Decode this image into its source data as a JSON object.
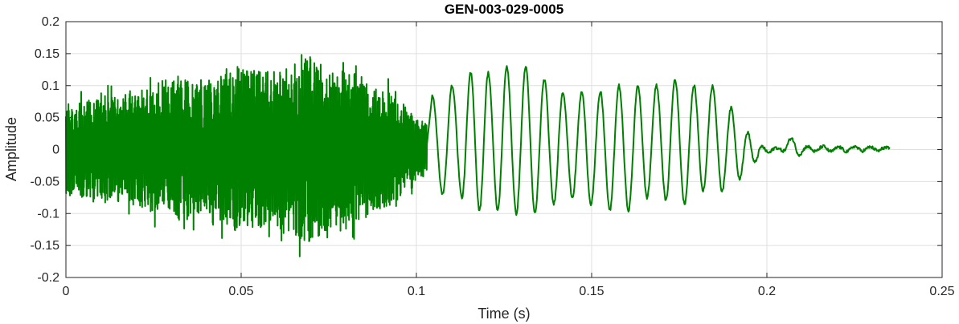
{
  "chart_data": {
    "type": "line",
    "title": "GEN-003-029-0005",
    "xlabel": "Time (s)",
    "ylabel": "Amplitude",
    "xlim": [
      0,
      0.25
    ],
    "ylim": [
      -0.2,
      0.2
    ],
    "xticks": [
      0,
      0.05,
      0.1,
      0.15,
      0.2,
      0.25
    ],
    "xtick_labels": [
      "0",
      "0.05",
      "0.1",
      "0.15",
      "0.2",
      "0.25"
    ],
    "yticks": [
      -0.2,
      -0.15,
      -0.1,
      -0.05,
      0,
      0.05,
      0.1,
      0.15,
      0.2
    ],
    "ytick_labels": [
      "-0.2",
      "-0.15",
      "-0.1",
      "-0.05",
      "0",
      "0.05",
      "0.1",
      "0.15",
      "0.2"
    ],
    "grid": true,
    "color": "#008000",
    "series": [
      {
        "segments": [
          {
            "kind": "noise",
            "t_start": 0.0,
            "t_end": 0.103,
            "env": [
              [
                0.0,
                0.07
              ],
              [
                0.01,
                0.08
              ],
              [
                0.02,
                0.09
              ],
              [
                0.03,
                0.11
              ],
              [
                0.04,
                0.11
              ],
              [
                0.05,
                0.13
              ],
              [
                0.06,
                0.12
              ],
              [
                0.067,
                0.15
              ],
              [
                0.075,
                0.13
              ],
              [
                0.085,
                0.11
              ],
              [
                0.092,
                0.09
              ],
              [
                0.1,
                0.05
              ],
              [
                0.103,
                0.04
              ]
            ]
          },
          {
            "kind": "peaks",
            "t": [
              0.1045,
              0.1075,
              0.1102,
              0.113,
              0.1155,
              0.118,
              0.1205,
              0.1232,
              0.1258,
              0.1285,
              0.1312,
              0.1338,
              0.1365,
              0.1392,
              0.1418,
              0.1445,
              0.1472,
              0.1498,
              0.1525,
              0.1552,
              0.1578,
              0.1605,
              0.1632,
              0.1658,
              0.1685,
              0.1712,
              0.1738,
              0.1765,
              0.1792,
              0.1818,
              0.1845,
              0.1872,
              0.1898,
              0.1922,
              0.1945,
              0.1965,
              0.1985,
              0.2005,
              0.2025,
              0.2048,
              0.207,
              0.2092,
              0.2115,
              0.2138,
              0.216,
              0.2182,
              0.2205,
              0.2228,
              0.225,
              0.2272,
              0.2295,
              0.2318,
              0.2335,
              0.235
            ],
            "y": [
              0.085,
              -0.07,
              0.1,
              -0.075,
              0.12,
              -0.095,
              0.12,
              -0.095,
              0.13,
              -0.1,
              0.13,
              -0.1,
              0.11,
              -0.085,
              0.09,
              -0.075,
              0.09,
              -0.085,
              0.09,
              -0.095,
              0.1,
              -0.095,
              0.1,
              -0.075,
              0.1,
              -0.08,
              0.11,
              -0.085,
              0.1,
              -0.065,
              0.1,
              -0.065,
              0.065,
              -0.045,
              0.027,
              -0.02,
              0.005,
              -0.005,
              0.003,
              -0.002,
              0.018,
              -0.008,
              0.005,
              -0.003,
              0.005,
              -0.003,
              0.004,
              -0.003,
              0.005,
              -0.002,
              0.004,
              -0.002,
              0.003,
              0.002
            ]
          }
        ]
      }
    ]
  }
}
